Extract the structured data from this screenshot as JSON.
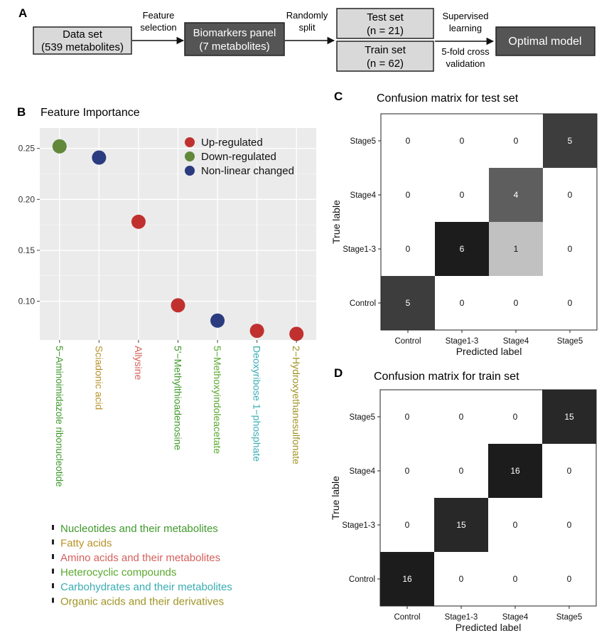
{
  "panel_a": {
    "letter": "A",
    "boxes": {
      "dataset": [
        "Data set",
        "(539 metabolites)"
      ],
      "biomarkers": [
        "Biomarkers panel",
        "(7 metabolites)"
      ],
      "test": [
        "Test set",
        "(n = 21)"
      ],
      "train": [
        "Train set",
        "(n = 62)"
      ],
      "optimal": [
        "Optimal model"
      ]
    },
    "arrow_labels": {
      "feature": [
        "Feature",
        "selection"
      ],
      "split": [
        "Randomly",
        "split"
      ],
      "supervised": [
        "Supervised",
        "learning"
      ],
      "cv": [
        "5-fold cross",
        "validation"
      ]
    }
  },
  "chart_data": [
    {
      "type": "scatter",
      "panel": "B",
      "title": "Feature Importance",
      "ylim": [
        0.062,
        0.27
      ],
      "yticks": [
        0.1,
        0.15,
        0.2,
        0.25
      ],
      "ytick_labels": [
        "0.10",
        "0.15",
        "0.20",
        "0.25"
      ],
      "grid": true,
      "legend_position": "top-right",
      "legend": [
        {
          "label": "Up-regulated",
          "color": "#c0302e"
        },
        {
          "label": "Down-regulated",
          "color": "#62883a"
        },
        {
          "label": "Non-linear changed",
          "color": "#2a3b80"
        }
      ],
      "points": [
        {
          "name": "5−Aminoimidazole ribonucleotide",
          "value": 0.252,
          "regulation": 1,
          "category": 0
        },
        {
          "name": "Sciadonic acid",
          "value": 0.241,
          "regulation": 2,
          "category": 1
        },
        {
          "name": "Allysine",
          "value": 0.178,
          "regulation": 0,
          "category": 2
        },
        {
          "name": "5'−Methylthioadenosine",
          "value": 0.096,
          "regulation": 0,
          "category": 0
        },
        {
          "name": "5−Methoxyindoleacetate",
          "value": 0.081,
          "regulation": 2,
          "category": 3
        },
        {
          "name": "Deoxyribose 1−phosphate",
          "value": 0.071,
          "regulation": 0,
          "category": 4
        },
        {
          "name": "2−Hydroxyethanesulfonate",
          "value": 0.068,
          "regulation": 0,
          "category": 5
        }
      ],
      "categories": [
        {
          "label": "Nucleotides and their metabolites",
          "color": "#3f9a2b"
        },
        {
          "label": "Fatty acids",
          "color": "#b8932a"
        },
        {
          "label": "Amino acids and their metabolites",
          "color": "#d4605c"
        },
        {
          "label": "Heterocyclic compounds",
          "color": "#58a82e"
        },
        {
          "label": "Carbohydrates and their metabolites",
          "color": "#39adb3"
        },
        {
          "label": "Organic acids and their derivatives",
          "color": "#a09424"
        }
      ]
    },
    {
      "type": "heatmap",
      "panel": "C",
      "title": "Confusion matrix for test set",
      "xlabel": "Predicted label",
      "ylabel": "True lable",
      "labels": [
        "Control",
        "Stage1-3",
        "Stage4",
        "Stage5"
      ],
      "matrix": [
        [
          5,
          0,
          0,
          0
        ],
        [
          0,
          6,
          1,
          0
        ],
        [
          0,
          0,
          4,
          0
        ],
        [
          0,
          0,
          0,
          5
        ]
      ],
      "vmax": 6
    },
    {
      "type": "heatmap",
      "panel": "D",
      "title": "Confusion matrix for train set",
      "xlabel": "Predicted label",
      "ylabel": "True lable",
      "labels": [
        "Control",
        "Stage1-3",
        "Stage4",
        "Stage5"
      ],
      "matrix": [
        [
          16,
          0,
          0,
          0
        ],
        [
          0,
          15,
          0,
          0
        ],
        [
          0,
          0,
          16,
          0
        ],
        [
          0,
          0,
          0,
          15
        ]
      ],
      "vmax": 16
    }
  ]
}
